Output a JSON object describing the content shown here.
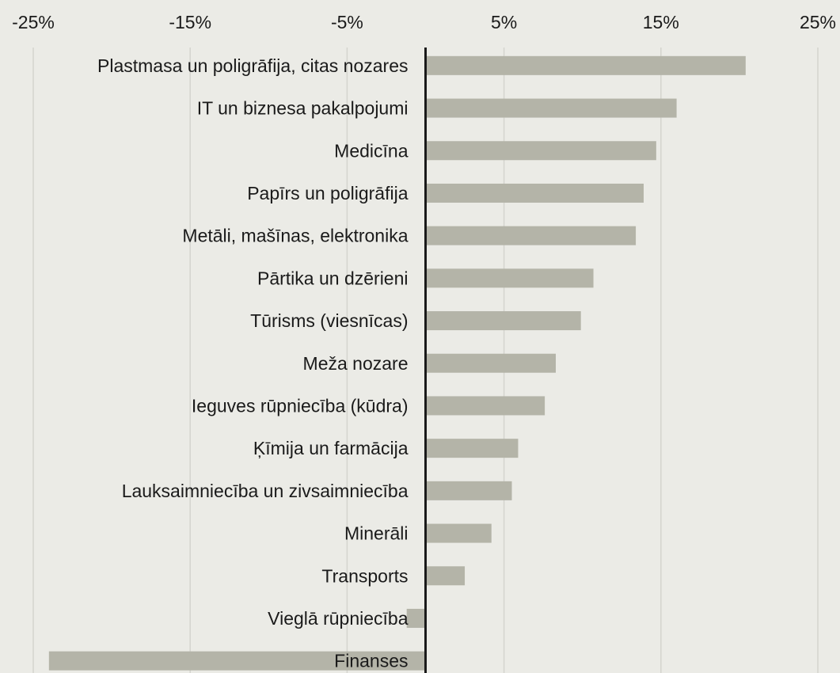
{
  "chart_data": {
    "type": "bar",
    "orientation": "horizontal",
    "title": "",
    "xlabel": "",
    "ylabel": "",
    "xlim": [
      -25,
      25
    ],
    "ticks": [
      -25,
      -15,
      -5,
      5,
      15,
      25
    ],
    "tick_labels": [
      "-25%",
      "-15%",
      "-5%",
      "5%",
      "15%",
      "25%"
    ],
    "grid": true,
    "legend": "none",
    "bar_color": "#b4b4a8",
    "zero_line_color": "#1a1a1a",
    "background_color": "#ebebe6",
    "gridline_color": "#d4d4ce",
    "categories": [
      "Plastmasa un poligrāfija, citas nozares",
      "IT un biznesa pakalpojumi",
      "Medicīna",
      "Papīrs un poligrāfija",
      "Metāli, mašīnas, elektronika",
      "Pārtika un dzērieni",
      "Tūrisms (viesnīcas)",
      "Meža nozare",
      "Ieguves rūpniecība (kūdra)",
      "Ķīmija un farmācija",
      "Lauksaimniecība un zivsaimniecība",
      "Minerāli",
      "Transports",
      "Vieglā rūpniecība",
      "Finanses"
    ],
    "values": [
      20.4,
      16.0,
      14.7,
      13.9,
      13.4,
      10.7,
      9.9,
      8.3,
      7.6,
      5.9,
      5.5,
      4.2,
      2.5,
      -1.2,
      -24.0
    ]
  }
}
